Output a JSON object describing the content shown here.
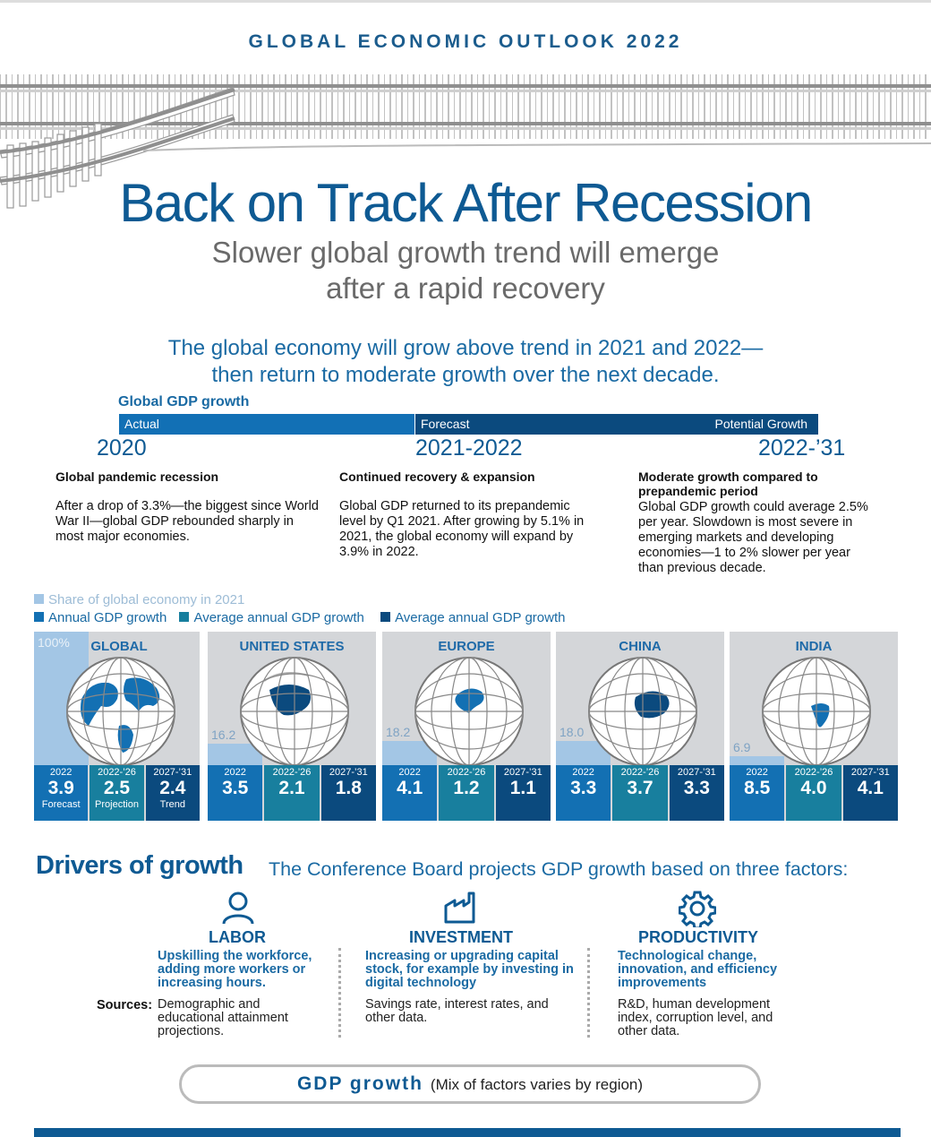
{
  "header": {
    "kicker": "GLOBAL ECONOMIC OUTLOOK 2022",
    "title": "Back on Track After Recession",
    "subtitle_line1": "Slower global growth trend will emerge",
    "subtitle_line2": "after a rapid recovery",
    "lead_line1": "The global economy will grow above trend in 2021 and 2022—",
    "lead_line2": "then return to moderate growth over the next decade."
  },
  "timeline": {
    "label": "Global GDP growth",
    "bar_actual": "Actual",
    "bar_forecast": "Forecast",
    "bar_potential": "Potential Growth",
    "years": [
      "2020",
      "2021-2022",
      "2022-’31"
    ],
    "columns": [
      {
        "heading": "Global pandemic recession",
        "text": "After a drop of 3.3%—the biggest since World War II—global GDP rebounded sharply in most major economies."
      },
      {
        "heading": "Continued recovery & expansion",
        "text": "Global GDP returned to its prepandemic level by Q1 2021. After growing by 5.1% in 2021, the global economy will expand by 3.9% in 2022."
      },
      {
        "heading": "Moderate growth compared to prepandemic period",
        "text": "Global GDP growth  could average 2.5% per year. Slowdown is most severe in emerging markets and developing economies—1 to 2% slower per year than previous decade."
      }
    ]
  },
  "legend": {
    "share": "Share of global economy in 2021",
    "annual": "Annual GDP growth",
    "avg1": "Average annual GDP growth",
    "avg2": "Average annual GDP growth",
    "colors": {
      "share": "#a3c6e5",
      "annual": "#1370b3",
      "avg1": "#187f9e",
      "avg2": "#0b4a7e"
    }
  },
  "regions": [
    {
      "name": "GLOBAL",
      "share": "100%",
      "share_value": 100,
      "map": "world-globe-icon",
      "boxes": [
        {
          "year": "2022",
          "value": "3.9",
          "sub": "Forecast"
        },
        {
          "year": "2022-’26",
          "value": "2.5",
          "sub": "Projection"
        },
        {
          "year": "2027-’31",
          "value": "2.4",
          "sub": "Trend"
        }
      ]
    },
    {
      "name": "UNITED STATES",
      "share": "16.2",
      "share_value": 16.2,
      "map": "north-america-globe-icon",
      "boxes": [
        {
          "year": "2022",
          "value": "3.5"
        },
        {
          "year": "2022-’26",
          "value": "2.1"
        },
        {
          "year": "2027-’31",
          "value": "1.8"
        }
      ]
    },
    {
      "name": "EUROPE",
      "share": "18.2",
      "share_value": 18.2,
      "map": "europe-globe-icon",
      "boxes": [
        {
          "year": "2022",
          "value": "4.1"
        },
        {
          "year": "2022-’26",
          "value": "1.2"
        },
        {
          "year": "2027-’31",
          "value": "1.1"
        }
      ]
    },
    {
      "name": "CHINA",
      "share": "18.0",
      "share_value": 18.0,
      "map": "china-globe-icon",
      "boxes": [
        {
          "year": "2022",
          "value": "3.3"
        },
        {
          "year": "2022-’26",
          "value": "3.7"
        },
        {
          "year": "2027-’31",
          "value": "3.3"
        }
      ]
    },
    {
      "name": "INDIA",
      "share": "6.9",
      "share_value": 6.9,
      "map": "india-globe-icon",
      "boxes": [
        {
          "year": "2022",
          "value": "8.5"
        },
        {
          "year": "2022-’26",
          "value": "4.0"
        },
        {
          "year": "2027-’31",
          "value": "4.1"
        }
      ]
    }
  ],
  "drivers": {
    "title": "Drivers of growth",
    "subtitle": "The Conference Board projects GDP growth based on three factors:",
    "sources_label": "Sources:",
    "items": [
      {
        "name": "LABOR",
        "icon": "person-icon",
        "desc": "Upskilling the workforce, adding more workers or increasing hours.",
        "sources": "Demographic and educational attainment projections."
      },
      {
        "name": "INVESTMENT",
        "icon": "factory-icon",
        "desc": "Increasing or upgrading capital stock, for example by investing in digital technology",
        "sources": "Savings rate, interest rates, and other data."
      },
      {
        "name": "PRODUCTIVITY",
        "icon": "gear-icon",
        "desc": "Technological change, innovation, and efficiency improvements",
        "sources": "R&D, human development index, corruption level, and other data."
      }
    ]
  },
  "footer": {
    "pill_bold": "GDP growth",
    "pill_text": "(Mix of factors varies by region)"
  }
}
